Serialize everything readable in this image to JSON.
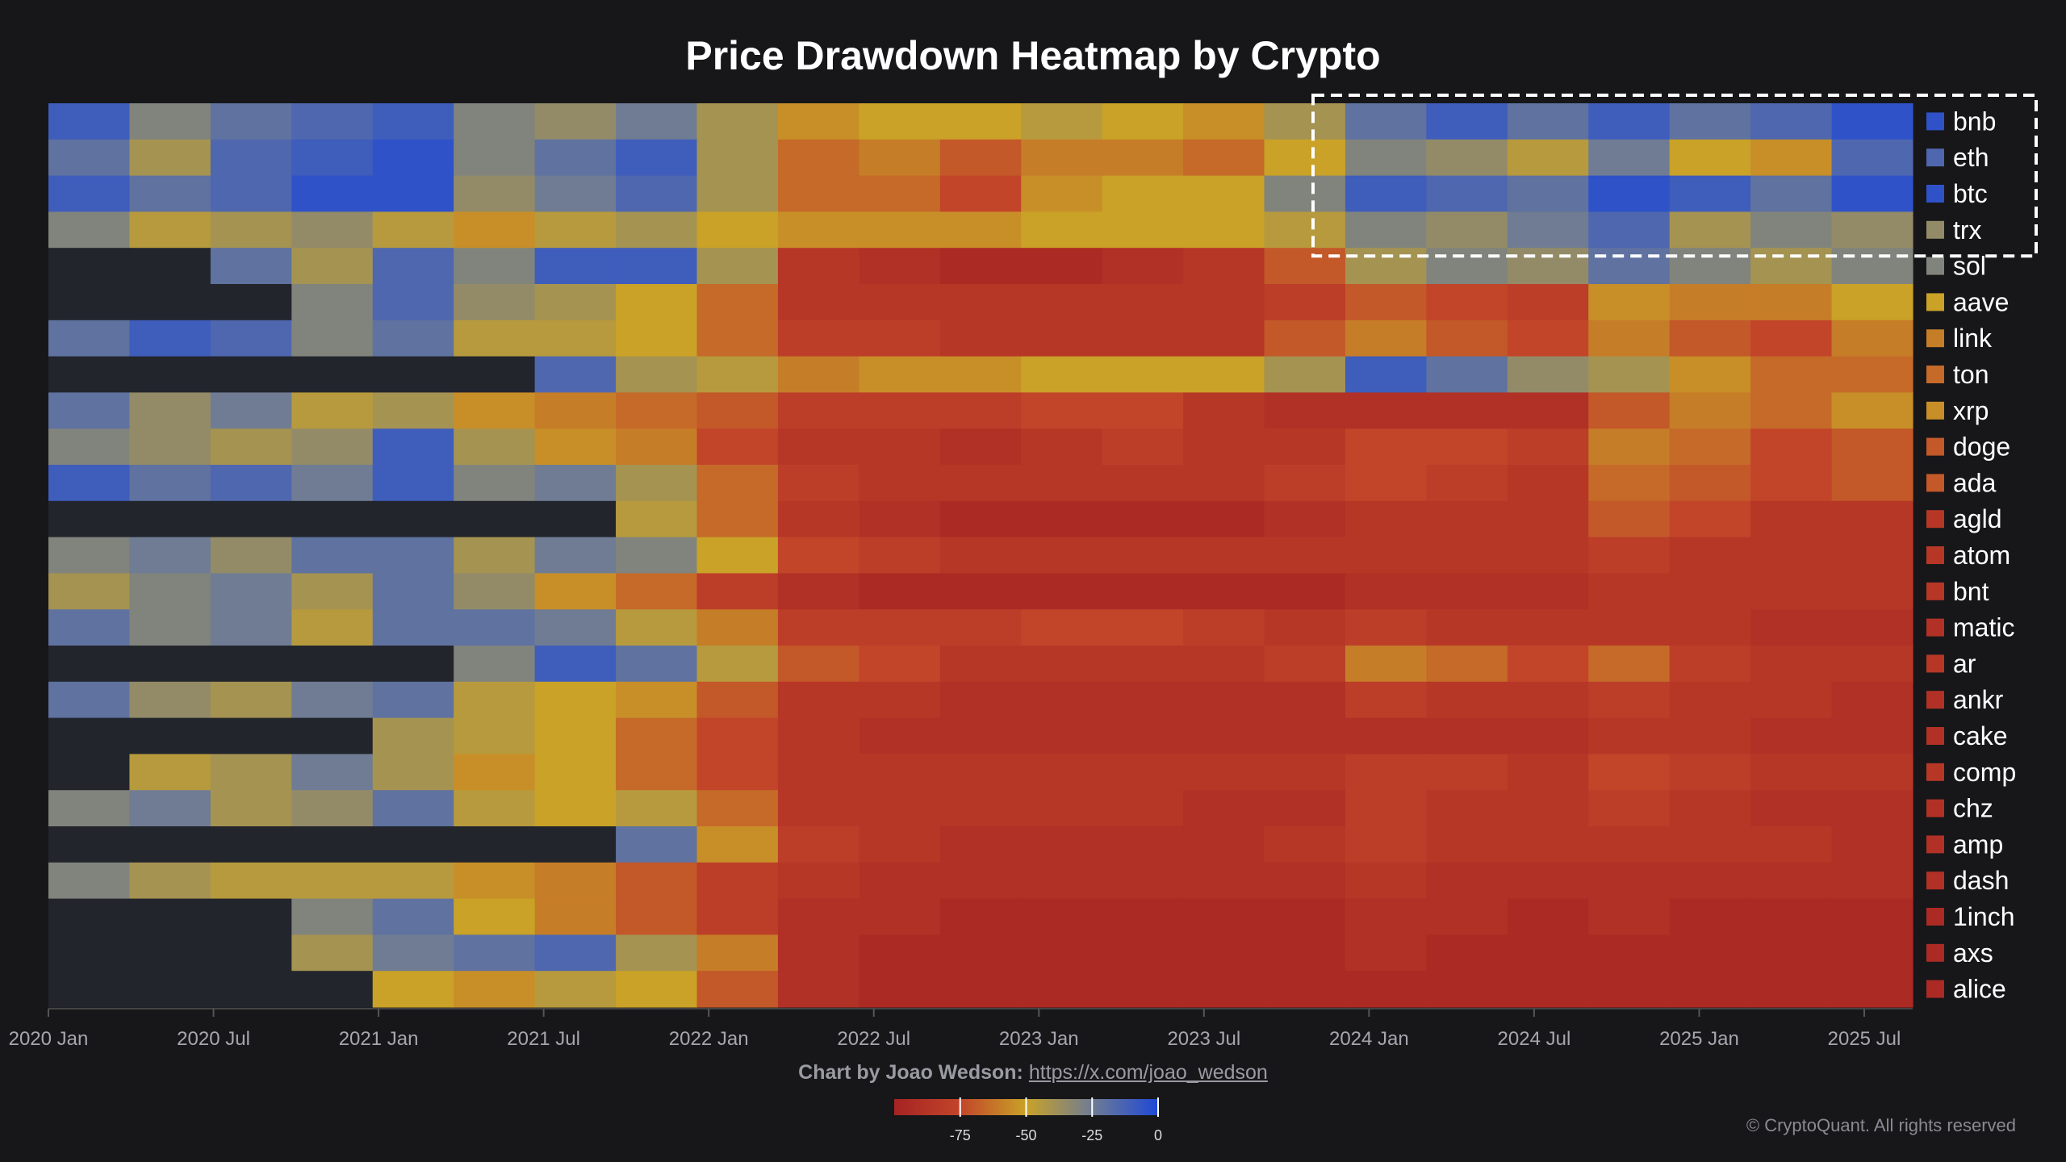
{
  "chart_data": {
    "type": "heatmap",
    "title": "Price Drawdown Heatmap by Crypto",
    "x_resolution": "quarterly",
    "x": [
      "2020 Q1",
      "2020 Q2",
      "2020 Q3",
      "2020 Q4",
      "2021 Q1",
      "2021 Q2",
      "2021 Q3",
      "2021 Q4",
      "2022 Q1",
      "2022 Q2",
      "2022 Q3",
      "2022 Q4",
      "2023 Q1",
      "2023 Q2",
      "2023 Q3",
      "2023 Q4",
      "2024 Q1",
      "2024 Q2",
      "2024 Q3",
      "2024 Q4",
      "2025 Q1",
      "2025 Q2",
      "2025 Q3"
    ],
    "x_tick_labels": [
      "2020 Jan",
      "2020 Jul",
      "2021 Jan",
      "2021 Jul",
      "2022 Jan",
      "2022 Jul",
      "2023 Jan",
      "2023 Jul",
      "2024 Jan",
      "2024 Jul",
      "2025 Jan",
      "2025 Jul"
    ],
    "colorbar": {
      "ticks": [
        -75,
        -50,
        -25,
        0
      ],
      "range": [
        -100,
        0
      ],
      "stops": [
        {
          "v": -100,
          "c": "#a62323"
        },
        {
          "v": -75,
          "c": "#c2452a"
        },
        {
          "v": -50,
          "c": "#c9a227"
        },
        {
          "v": -25,
          "c": "#6f7c93"
        },
        {
          "v": 0,
          "c": "#1f48d6"
        }
      ]
    },
    "no_data_color": "#22252c",
    "highlight_rows": [
      "bnb",
      "eth",
      "btc",
      "trx"
    ],
    "series": [
      {
        "name": "bnb",
        "values": [
          -10,
          -30,
          -20,
          -15,
          -10,
          -30,
          -35,
          -25,
          -40,
          -55,
          -50,
          -50,
          -45,
          -50,
          -55,
          -40,
          -20,
          -10,
          -20,
          -10,
          -20,
          -15,
          -5
        ]
      },
      {
        "name": "eth",
        "values": [
          -20,
          -40,
          -15,
          -10,
          -5,
          -30,
          -20,
          -10,
          -40,
          -65,
          -60,
          -70,
          -60,
          -60,
          -65,
          -50,
          -30,
          -35,
          -45,
          -25,
          -50,
          -55,
          -15
        ]
      },
      {
        "name": "btc",
        "values": [
          -10,
          -20,
          -15,
          -5,
          -5,
          -35,
          -25,
          -15,
          -40,
          -65,
          -65,
          -75,
          -55,
          -50,
          -50,
          -30,
          -10,
          -15,
          -20,
          -5,
          -10,
          -20,
          -5
        ]
      },
      {
        "name": "trx",
        "values": [
          -30,
          -45,
          -40,
          -35,
          -45,
          -55,
          -45,
          -40,
          -50,
          -55,
          -55,
          -55,
          -50,
          -50,
          -50,
          -45,
          -30,
          -35,
          -25,
          -15,
          -40,
          -30,
          -35
        ]
      },
      {
        "name": "sol",
        "values": [
          null,
          null,
          -20,
          -40,
          -15,
          -30,
          -10,
          -10,
          -40,
          -85,
          -90,
          -95,
          -95,
          -90,
          -85,
          -70,
          -40,
          -30,
          -35,
          -20,
          -30,
          -40,
          -30
        ]
      },
      {
        "name": "aave",
        "values": [
          null,
          null,
          null,
          -30,
          -15,
          -35,
          -40,
          -50,
          -65,
          -85,
          -85,
          -85,
          -85,
          -85,
          -85,
          -80,
          -70,
          -75,
          -80,
          -55,
          -60,
          -60,
          -50
        ]
      },
      {
        "name": "link",
        "values": [
          -20,
          -10,
          -15,
          -30,
          -20,
          -45,
          -45,
          -50,
          -65,
          -80,
          -80,
          -85,
          -85,
          -85,
          -85,
          -70,
          -60,
          -70,
          -75,
          -60,
          -70,
          -75,
          -60
        ]
      },
      {
        "name": "ton",
        "values": [
          null,
          null,
          null,
          null,
          null,
          null,
          -15,
          -40,
          -45,
          -60,
          -55,
          -55,
          -50,
          -50,
          -50,
          -40,
          -10,
          -20,
          -35,
          -40,
          -55,
          -65,
          -65
        ]
      },
      {
        "name": "xrp",
        "values": [
          -20,
          -35,
          -25,
          -45,
          -40,
          -55,
          -60,
          -65,
          -70,
          -80,
          -80,
          -80,
          -75,
          -75,
          -85,
          -90,
          -90,
          -90,
          -90,
          -70,
          -60,
          -65,
          -55
        ]
      },
      {
        "name": "doge",
        "values": [
          -30,
          -35,
          -40,
          -35,
          -10,
          -40,
          -55,
          -60,
          -75,
          -85,
          -85,
          -90,
          -85,
          -80,
          -85,
          -85,
          -75,
          -75,
          -80,
          -60,
          -65,
          -75,
          -70
        ]
      },
      {
        "name": "ada",
        "values": [
          -10,
          -20,
          -15,
          -25,
          -10,
          -30,
          -25,
          -40,
          -65,
          -80,
          -85,
          -85,
          -85,
          -85,
          -85,
          -80,
          -75,
          -80,
          -85,
          -65,
          -70,
          -75,
          -70
        ]
      },
      {
        "name": "agld",
        "values": [
          null,
          null,
          null,
          null,
          null,
          null,
          null,
          -45,
          -65,
          -85,
          -90,
          -95,
          -95,
          -95,
          -95,
          -90,
          -85,
          -85,
          -85,
          -70,
          -75,
          -85,
          -85
        ]
      },
      {
        "name": "atom",
        "values": [
          -30,
          -25,
          -35,
          -20,
          -20,
          -40,
          -25,
          -30,
          -50,
          -75,
          -80,
          -85,
          -85,
          -85,
          -85,
          -85,
          -85,
          -85,
          -85,
          -80,
          -85,
          -85,
          -85
        ]
      },
      {
        "name": "bnt",
        "values": [
          -40,
          -30,
          -25,
          -40,
          -20,
          -35,
          -55,
          -65,
          -80,
          -90,
          -95,
          -95,
          -95,
          -95,
          -95,
          -95,
          -90,
          -90,
          -90,
          -85,
          -85,
          -85,
          -85
        ]
      },
      {
        "name": "matic",
        "values": [
          -20,
          -30,
          -25,
          -45,
          -20,
          -20,
          -25,
          -45,
          -60,
          -80,
          -80,
          -80,
          -75,
          -75,
          -80,
          -85,
          -80,
          -85,
          -85,
          -85,
          -85,
          -90,
          -90
        ]
      },
      {
        "name": "ar",
        "values": [
          null,
          null,
          null,
          null,
          null,
          -30,
          -10,
          -20,
          -45,
          -70,
          -75,
          -85,
          -85,
          -85,
          -85,
          -80,
          -60,
          -65,
          -75,
          -65,
          -80,
          -85,
          -85
        ]
      },
      {
        "name": "ankr",
        "values": [
          -20,
          -35,
          -40,
          -25,
          -20,
          -45,
          -50,
          -55,
          -70,
          -85,
          -85,
          -90,
          -90,
          -90,
          -90,
          -90,
          -80,
          -85,
          -85,
          -80,
          -85,
          -85,
          -90
        ]
      },
      {
        "name": "cake",
        "values": [
          null,
          null,
          null,
          null,
          -40,
          -45,
          -50,
          -65,
          -75,
          -85,
          -90,
          -90,
          -90,
          -90,
          -90,
          -90,
          -90,
          -90,
          -90,
          -85,
          -85,
          -90,
          -90
        ]
      },
      {
        "name": "comp",
        "values": [
          null,
          -45,
          -40,
          -25,
          -40,
          -55,
          -50,
          -65,
          -75,
          -85,
          -85,
          -85,
          -85,
          -85,
          -85,
          -85,
          -80,
          -80,
          -85,
          -75,
          -80,
          -85,
          -85
        ]
      },
      {
        "name": "chz",
        "values": [
          -30,
          -25,
          -40,
          -35,
          -20,
          -45,
          -50,
          -45,
          -65,
          -85,
          -85,
          -85,
          -85,
          -85,
          -90,
          -90,
          -80,
          -85,
          -85,
          -80,
          -85,
          -90,
          -90
        ]
      },
      {
        "name": "amp",
        "values": [
          null,
          null,
          null,
          null,
          null,
          null,
          null,
          -20,
          -55,
          -80,
          -85,
          -90,
          -90,
          -90,
          -90,
          -85,
          -80,
          -85,
          -85,
          -85,
          -85,
          -85,
          -90
        ]
      },
      {
        "name": "dash",
        "values": [
          -30,
          -40,
          -45,
          -45,
          -45,
          -55,
          -60,
          -70,
          -80,
          -85,
          -90,
          -90,
          -90,
          -90,
          -90,
          -90,
          -85,
          -90,
          -90,
          -90,
          -90,
          -90,
          -90
        ]
      },
      {
        "name": "1inch",
        "values": [
          null,
          null,
          null,
          -30,
          -20,
          -50,
          -60,
          -70,
          -80,
          -90,
          -90,
          -95,
          -95,
          -95,
          -95,
          -95,
          -90,
          -90,
          -95,
          -90,
          -95,
          -95,
          -95
        ]
      },
      {
        "name": "axs",
        "values": [
          null,
          null,
          null,
          -40,
          -25,
          -20,
          -15,
          -40,
          -60,
          -90,
          -95,
          -95,
          -95,
          -95,
          -95,
          -95,
          -90,
          -95,
          -95,
          -95,
          -95,
          -95,
          -95
        ]
      },
      {
        "name": "alice",
        "values": [
          null,
          null,
          null,
          null,
          -50,
          -55,
          -45,
          -50,
          -70,
          -90,
          -95,
          -95,
          -95,
          -95,
          -95,
          -95,
          -95,
          -95,
          -95,
          -95,
          -95,
          -95,
          -95
        ]
      }
    ]
  },
  "credit": {
    "label": "Chart by Joao Wedson:",
    "link": "https://x.com/joao_wedson"
  },
  "copyright": "© CryptoQuant. All rights reserved"
}
